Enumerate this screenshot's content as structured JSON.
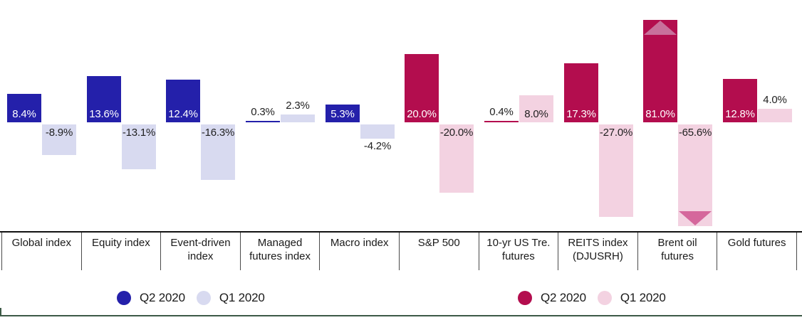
{
  "chart_data": {
    "type": "bar",
    "unit": "%",
    "title": "",
    "categories": [
      "Global index",
      "Equity index",
      "Event-driven index",
      "Managed futures index",
      "Macro index",
      "S&P 500",
      "10-yr US Tre. futures",
      "REITS index (DJUSRH)",
      "Brent oil futures",
      "Gold futures"
    ],
    "groups": [
      {
        "category": "Global index",
        "scheme": "blue",
        "q2": {
          "value": 8.4,
          "label": "8.4%"
        },
        "q1": {
          "value": -8.9,
          "label": "-8.9%"
        }
      },
      {
        "category": "Equity index",
        "scheme": "blue",
        "q2": {
          "value": 13.6,
          "label": "13.6%"
        },
        "q1": {
          "value": -13.1,
          "label": "-13.1%"
        }
      },
      {
        "category": "Event-driven index",
        "scheme": "blue",
        "q2": {
          "value": 12.4,
          "label": "12.4%"
        },
        "q1": {
          "value": -16.3,
          "label": "-16.3%"
        }
      },
      {
        "category": "Managed futures index",
        "scheme": "blue",
        "q2": {
          "value": 0.3,
          "label": "0.3%"
        },
        "q1": {
          "value": 2.3,
          "label": "2.3%"
        }
      },
      {
        "category": "Macro index",
        "scheme": "blue",
        "q2": {
          "value": 5.3,
          "label": "5.3%"
        },
        "q1": {
          "value": -4.2,
          "label": "-4.2%"
        }
      },
      {
        "category": "S&P 500",
        "scheme": "pink",
        "q2": {
          "value": 20.0,
          "label": "20.0%"
        },
        "q1": {
          "value": -20.0,
          "label": "-20.0%"
        }
      },
      {
        "category": "10-yr US Tre. futures",
        "scheme": "pink",
        "q2": {
          "value": 0.4,
          "label": "0.4%"
        },
        "q1": {
          "value": 8.0,
          "label": "8.0%"
        }
      },
      {
        "category": "REITS index (DJUSRH)",
        "scheme": "pink",
        "q2": {
          "value": 17.3,
          "label": "17.3%"
        },
        "q1": {
          "value": -27.0,
          "label": "-27.0%"
        }
      },
      {
        "category": "Brent oil futures",
        "scheme": "pink",
        "q2": {
          "value": 81.0,
          "label": "81.0%",
          "clipped": true
        },
        "q1": {
          "value": -65.6,
          "label": "-65.6%",
          "clipped": true
        }
      },
      {
        "category": "Gold futures",
        "scheme": "pink",
        "q2": {
          "value": 12.8,
          "label": "12.8%"
        },
        "q1": {
          "value": 4.0,
          "label": "4.0%"
        }
      }
    ],
    "legends": {
      "left": [
        {
          "color": "#2420aa",
          "label": "Q2 2020"
        },
        {
          "color": "#d8daf0",
          "label": "Q1 2020"
        }
      ],
      "right": [
        {
          "color": "#b30d4e",
          "label": "Q2 2020"
        },
        {
          "color": "#f3d2e1",
          "label": "Q1 2020"
        }
      ]
    },
    "colors": {
      "blue": "#2420aa",
      "lavender": "#d8daf0",
      "crimson": "#b30d4e",
      "pink": "#f3d2e1",
      "clip_arrow_up": "#c8709b",
      "clip_arrow_down": "#d5679c",
      "axis_line": "#111111",
      "label_dark": "#1f1f1f",
      "label_light": "#ffffff",
      "footer_line": "#3d5a47"
    },
    "layout": {
      "legend_position": "bottom",
      "grid": false,
      "value_axis_hidden": true,
      "clipped_bars_marked_with_arrows": true
    }
  }
}
